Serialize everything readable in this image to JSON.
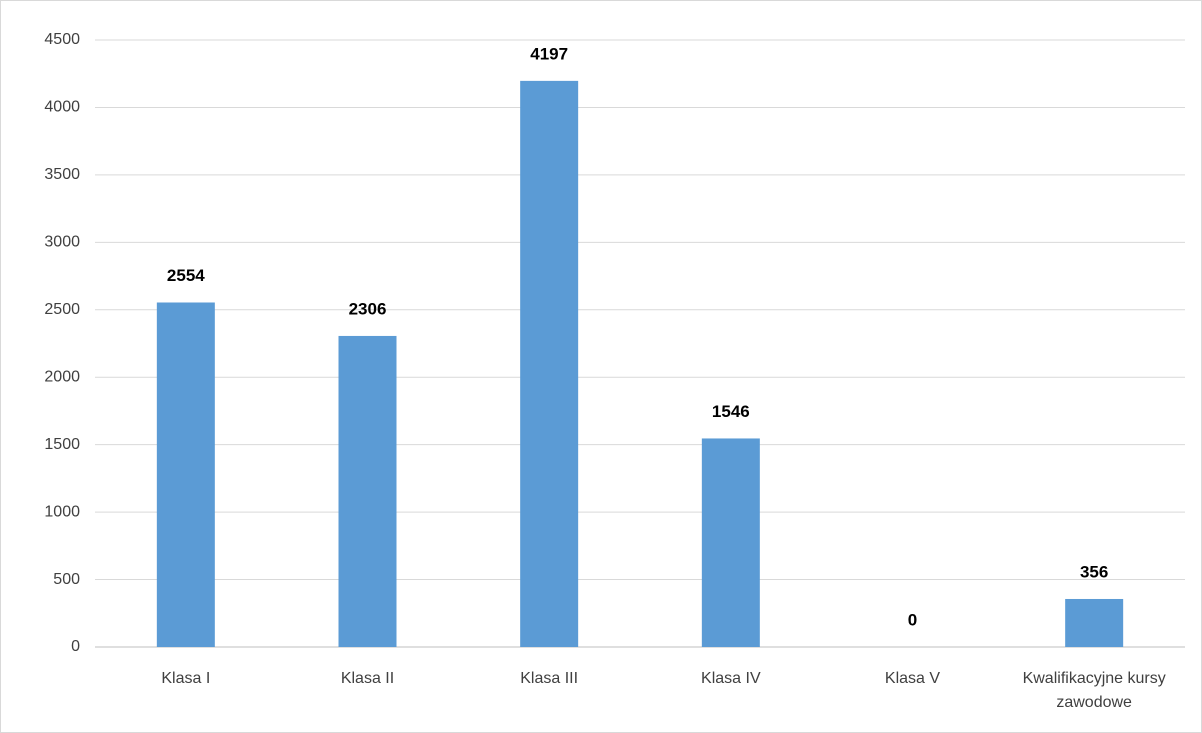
{
  "chart_data": {
    "type": "bar",
    "categories": [
      "Klasa I",
      "Klasa II",
      "Klasa III",
      "Klasa IV",
      "Klasa V",
      "Kwalifikacyjne kursy zawodowe"
    ],
    "values": [
      2554,
      2306,
      4197,
      1546,
      0,
      356
    ],
    "color": "#5b9bd5",
    "ylim": [
      0,
      4500
    ],
    "yticks": [
      0,
      500,
      1000,
      1500,
      2000,
      2500,
      3000,
      3500,
      4000,
      4500
    ],
    "grid": true
  }
}
